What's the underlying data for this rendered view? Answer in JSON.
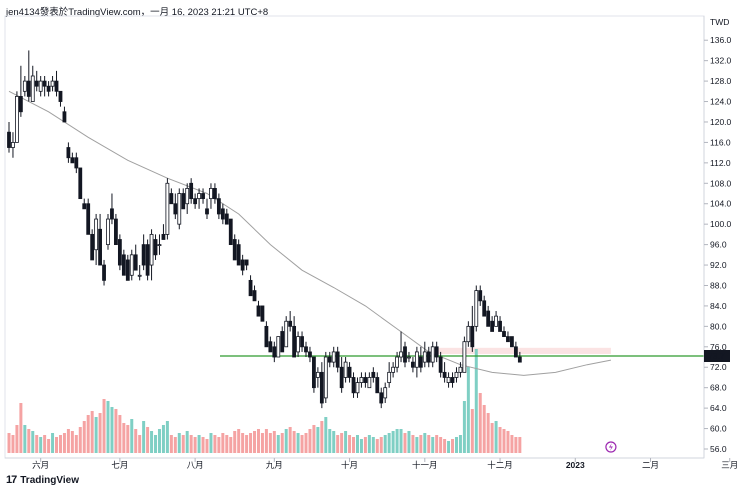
{
  "header": {
    "caption": "jen4134發表於TradingView.com，一月 16, 2023 21:21 UTC+8"
  },
  "footer": {
    "brand": "TradingView",
    "logo_icon": "tradingview-logo-icon"
  },
  "colors": {
    "up": "#ffffff",
    "up_border": "#131722",
    "down": "#131722",
    "vol_up": "#7fcfc4",
    "vol_down": "#f5a3a3",
    "ma": "#a0a0a0",
    "support_line": "#2e9a2e",
    "zone": "#fbe3e3",
    "last_price_bg": "#131722",
    "event_icon": "#9c27b0"
  },
  "chart_data": {
    "type": "candlestick",
    "currency_label": "TWD",
    "ylim": [
      56,
      138
    ],
    "y_ticks": [
      "56.0",
      "60.0",
      "64.0",
      "68.0",
      "72.0",
      "76.0",
      "80.0",
      "84.0",
      "88.0",
      "92.0",
      "96.0",
      "100.0",
      "104.0",
      "108.0",
      "112.0",
      "116.0",
      "120.0",
      "124.0",
      "128.0",
      "132.0",
      "136.0"
    ],
    "x_ticks": [
      "六月",
      "七月",
      "八月",
      "九月",
      "十月",
      "十一月",
      "十二月",
      "2023",
      "二月",
      "三月"
    ],
    "x_tick_index": [
      8,
      28,
      47,
      67,
      86,
      105,
      124,
      143,
      162,
      182
    ],
    "last_price": "73.7",
    "support_level": 74.2,
    "resistance_zone": [
      74.6,
      75.8
    ],
    "ma_points": [
      [
        0,
        126
      ],
      [
        10,
        122
      ],
      [
        20,
        117
      ],
      [
        30,
        112.5
      ],
      [
        40,
        109
      ],
      [
        50,
        106
      ],
      [
        58,
        102
      ],
      [
        66,
        96
      ],
      [
        74,
        91
      ],
      [
        82,
        87.6
      ],
      [
        90,
        84
      ],
      [
        98,
        79.5
      ],
      [
        106,
        75
      ],
      [
        114,
        72.5
      ],
      [
        122,
        71
      ],
      [
        130,
        70.4
      ],
      [
        138,
        71
      ],
      [
        146,
        72.5
      ],
      [
        152,
        73.4
      ]
    ],
    "candles": [
      [
        118,
        120,
        114,
        115
      ],
      [
        115,
        118,
        113,
        116
      ],
      [
        116,
        126,
        116,
        125
      ],
      [
        125,
        131,
        121,
        122
      ],
      [
        126,
        129,
        125,
        128
      ],
      [
        128,
        134,
        124,
        125
      ],
      [
        124,
        131,
        124,
        129
      ],
      [
        128,
        130,
        126,
        127
      ],
      [
        126,
        129,
        125,
        128
      ],
      [
        128,
        129,
        125,
        127
      ],
      [
        127,
        128,
        125,
        126
      ],
      [
        127,
        129,
        126,
        128
      ],
      [
        128,
        130,
        125,
        126
      ],
      [
        126,
        126,
        123,
        124
      ],
      [
        122,
        123,
        120,
        120
      ],
      [
        115,
        116,
        112,
        113
      ],
      [
        113,
        114,
        112,
        112
      ],
      [
        113,
        114,
        110,
        111
      ],
      [
        111,
        111,
        105,
        105
      ],
      [
        104,
        105,
        103,
        103
      ],
      [
        104,
        105,
        98,
        98
      ],
      [
        98,
        99,
        93,
        93
      ],
      [
        95,
        102,
        92,
        101
      ],
      [
        99,
        102,
        92,
        92
      ],
      [
        92,
        93,
        88,
        89
      ],
      [
        96,
        102,
        95,
        101
      ],
      [
        103,
        106,
        100,
        101
      ],
      [
        101,
        102,
        96,
        96
      ],
      [
        97,
        98,
        91,
        92
      ],
      [
        94,
        95,
        90,
        90
      ],
      [
        93,
        94,
        89,
        89
      ],
      [
        90,
        95,
        89,
        94
      ],
      [
        94,
        96,
        91,
        91
      ],
      [
        90,
        92,
        89,
        90
      ],
      [
        96,
        98,
        91,
        92
      ],
      [
        96,
        97,
        89,
        90
      ],
      [
        92,
        99,
        89,
        98
      ],
      [
        97,
        98,
        93,
        94
      ],
      [
        96,
        98,
        94,
        96
      ],
      [
        98,
        100,
        97,
        97
      ],
      [
        98,
        109,
        97,
        108
      ],
      [
        106,
        107,
        104,
        104
      ],
      [
        104,
        106,
        101,
        102
      ],
      [
        100,
        107,
        99,
        106
      ],
      [
        106,
        107,
        103,
        103
      ],
      [
        104,
        108,
        102,
        107
      ],
      [
        108,
        109,
        104,
        105
      ],
      [
        105,
        106,
        103,
        104
      ],
      [
        105,
        107,
        103,
        106
      ],
      [
        106,
        107,
        104,
        105
      ],
      [
        103,
        105,
        101,
        102
      ],
      [
        105,
        108,
        103,
        107
      ],
      [
        107,
        108,
        104,
        105
      ],
      [
        105,
        106,
        101,
        102
      ],
      [
        103,
        104,
        100,
        101
      ],
      [
        102,
        103,
        100,
        100
      ],
      [
        101,
        101,
        96,
        96
      ],
      [
        97,
        98,
        93,
        93
      ],
      [
        96,
        97,
        92,
        92
      ],
      [
        93,
        94,
        90,
        91
      ],
      [
        93,
        93,
        91,
        92
      ],
      [
        89,
        90,
        86,
        86
      ],
      [
        87,
        88,
        85,
        85
      ],
      [
        84,
        85,
        82,
        82
      ],
      [
        84,
        84,
        81,
        81
      ],
      [
        80,
        81,
        76,
        76
      ],
      [
        77,
        78,
        75,
        75
      ],
      [
        76,
        77,
        73,
        74
      ],
      [
        74,
        78,
        74,
        78
      ],
      [
        79,
        80,
        75,
        75
      ],
      [
        76,
        82,
        76,
        81
      ],
      [
        81,
        83,
        79,
        80
      ],
      [
        80,
        82,
        74,
        74
      ],
      [
        75,
        79,
        74,
        78
      ],
      [
        78,
        79,
        75,
        76
      ],
      [
        76,
        77,
        74,
        75
      ],
      [
        75,
        76,
        73,
        74
      ],
      [
        74,
        74,
        67,
        68
      ],
      [
        70,
        72,
        68,
        71
      ],
      [
        71,
        73,
        64,
        65
      ],
      [
        66,
        75,
        65,
        74
      ],
      [
        74,
        75,
        72,
        73
      ],
      [
        73,
        76,
        72,
        75
      ],
      [
        75,
        76,
        71,
        72
      ],
      [
        72,
        74,
        67,
        68
      ],
      [
        70,
        74,
        69,
        73
      ],
      [
        72,
        73,
        69,
        70
      ],
      [
        70,
        71,
        66,
        67
      ],
      [
        67,
        70,
        66,
        69
      ],
      [
        69,
        71,
        68,
        70
      ],
      [
        70,
        71,
        68,
        69
      ],
      [
        68,
        71,
        68,
        70
      ],
      [
        71,
        72,
        69,
        70
      ],
      [
        70,
        71,
        67,
        67
      ],
      [
        67,
        68,
        64,
        65
      ],
      [
        66,
        69,
        65,
        68
      ],
      [
        69,
        73,
        68,
        71
      ],
      [
        71,
        73,
        70,
        72
      ],
      [
        72,
        75,
        71,
        74
      ],
      [
        74,
        79,
        73,
        75
      ],
      [
        76,
        77,
        72,
        73
      ],
      [
        74,
        75,
        73,
        74
      ],
      [
        73,
        74,
        71,
        72
      ],
      [
        72,
        76,
        70,
        75
      ],
      [
        74,
        76,
        71,
        72
      ],
      [
        73,
        77,
        72,
        75
      ],
      [
        75,
        76,
        72,
        73
      ],
      [
        73,
        77,
        72,
        76
      ],
      [
        76,
        77,
        73,
        74
      ],
      [
        74,
        75,
        70,
        71
      ],
      [
        71,
        73,
        69,
        70
      ],
      [
        69,
        71,
        68,
        70
      ],
      [
        70,
        71,
        68,
        69
      ],
      [
        70,
        72,
        69,
        71
      ],
      [
        71,
        73,
        70,
        72
      ],
      [
        71,
        78,
        71,
        77
      ],
      [
        77,
        81,
        76,
        80
      ],
      [
        80,
        84,
        75,
        76
      ],
      [
        80,
        88,
        79,
        87
      ],
      [
        87,
        88,
        84,
        85
      ],
      [
        85,
        86,
        82,
        82
      ],
      [
        83,
        84,
        80,
        80
      ],
      [
        81,
        82,
        79,
        79
      ],
      [
        80,
        83,
        80,
        82
      ],
      [
        81,
        82,
        79,
        79
      ],
      [
        79,
        80,
        78,
        78
      ],
      [
        78,
        79,
        77,
        77
      ],
      [
        78,
        78,
        76,
        76
      ],
      [
        76,
        77,
        74,
        74
      ],
      [
        74,
        75,
        73,
        73
      ]
    ],
    "volumes": [
      [
        10,
        0
      ],
      [
        9,
        0
      ],
      [
        14,
        0
      ],
      [
        25,
        0
      ],
      [
        14,
        1
      ],
      [
        12,
        0
      ],
      [
        11,
        1
      ],
      [
        9,
        0
      ],
      [
        8,
        1
      ],
      [
        9,
        0
      ],
      [
        7,
        0
      ],
      [
        10,
        1
      ],
      [
        8,
        0
      ],
      [
        9,
        0
      ],
      [
        10,
        0
      ],
      [
        12,
        0
      ],
      [
        11,
        0
      ],
      [
        9,
        0
      ],
      [
        13,
        0
      ],
      [
        16,
        0
      ],
      [
        19,
        0
      ],
      [
        21,
        0
      ],
      [
        18,
        1
      ],
      [
        20,
        0
      ],
      [
        27,
        0
      ],
      [
        26,
        1
      ],
      [
        23,
        1
      ],
      [
        22,
        0
      ],
      [
        19,
        0
      ],
      [
        15,
        0
      ],
      [
        14,
        0
      ],
      [
        17,
        1
      ],
      [
        12,
        0
      ],
      [
        9,
        0
      ],
      [
        16,
        1
      ],
      [
        13,
        0
      ],
      [
        11,
        1
      ],
      [
        9,
        1
      ],
      [
        12,
        1
      ],
      [
        14,
        1
      ],
      [
        16,
        1
      ],
      [
        9,
        0
      ],
      [
        8,
        0
      ],
      [
        10,
        1
      ],
      [
        9,
        0
      ],
      [
        11,
        1
      ],
      [
        9,
        0
      ],
      [
        8,
        0
      ],
      [
        9,
        1
      ],
      [
        8,
        0
      ],
      [
        7,
        0
      ],
      [
        10,
        1
      ],
      [
        9,
        0
      ],
      [
        8,
        0
      ],
      [
        10,
        0
      ],
      [
        9,
        0
      ],
      [
        8,
        0
      ],
      [
        11,
        0
      ],
      [
        12,
        0
      ],
      [
        10,
        0
      ],
      [
        9,
        0
      ],
      [
        10,
        0
      ],
      [
        11,
        0
      ],
      [
        12,
        0
      ],
      [
        10,
        0
      ],
      [
        12,
        0
      ],
      [
        10,
        0
      ],
      [
        11,
        0
      ],
      [
        9,
        1
      ],
      [
        10,
        0
      ],
      [
        12,
        1
      ],
      [
        13,
        0
      ],
      [
        11,
        0
      ],
      [
        10,
        1
      ],
      [
        9,
        0
      ],
      [
        10,
        0
      ],
      [
        12,
        0
      ],
      [
        14,
        0
      ],
      [
        13,
        1
      ],
      [
        16,
        0
      ],
      [
        18,
        1
      ],
      [
        12,
        1
      ],
      [
        11,
        1
      ],
      [
        9,
        0
      ],
      [
        10,
        0
      ],
      [
        11,
        1
      ],
      [
        9,
        0
      ],
      [
        8,
        0
      ],
      [
        9,
        1
      ],
      [
        7,
        1
      ],
      [
        8,
        0
      ],
      [
        9,
        1
      ],
      [
        8,
        1
      ],
      [
        7,
        0
      ],
      [
        8,
        0
      ],
      [
        9,
        1
      ],
      [
        10,
        1
      ],
      [
        11,
        1
      ],
      [
        12,
        1
      ],
      [
        12,
        1
      ],
      [
        10,
        0
      ],
      [
        11,
        1
      ],
      [
        9,
        0
      ],
      [
        8,
        1
      ],
      [
        9,
        0
      ],
      [
        10,
        1
      ],
      [
        9,
        0
      ],
      [
        8,
        1
      ],
      [
        9,
        0
      ],
      [
        8,
        0
      ],
      [
        7,
        0
      ],
      [
        6,
        1
      ],
      [
        7,
        0
      ],
      [
        8,
        1
      ],
      [
        9,
        1
      ],
      [
        26,
        1
      ],
      [
        43,
        1
      ],
      [
        22,
        0
      ],
      [
        52,
        1
      ],
      [
        30,
        0
      ],
      [
        24,
        0
      ],
      [
        20,
        0
      ],
      [
        15,
        0
      ],
      [
        16,
        1
      ],
      [
        13,
        0
      ],
      [
        12,
        0
      ],
      [
        11,
        0
      ],
      [
        9,
        0
      ],
      [
        8,
        0
      ],
      [
        8,
        0
      ]
    ]
  }
}
